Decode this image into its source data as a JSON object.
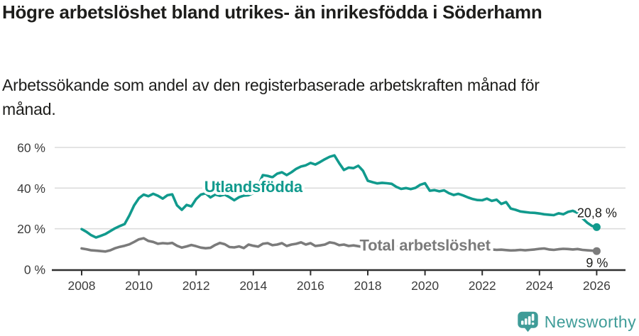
{
  "header": {
    "title": "Högre arbetslöshet bland utrikes- än inrikesfödda i Söderhamn",
    "subtitle": "Arbetssökande som andel av den registerbaserade arbetskraften månad för månad."
  },
  "footer": {
    "brand_name": "Newsworthy",
    "brand_icon": "speech-bubble-with-bar-chart-and-exclamation"
  },
  "colors": {
    "foreign_born_line": "#119a8d",
    "total_line": "#7b7b7b",
    "brand_teal": "#3f9c98",
    "text_dark": "#1d1d1b",
    "axis_text": "#3c3c3c",
    "gridline": "#dcdcdc",
    "axis_line": "#2f2f2f",
    "background": "#ffffff"
  },
  "chart_data": {
    "type": "line",
    "title": "Högre arbetslöshet bland utrikes- än inrikesfödda i Söderhamn",
    "subtitle": "Arbetssökande som andel av den registerbaserade arbetskraften månad för månad.",
    "unit": "%",
    "grid": "horizontal-only",
    "legend_position": "inline-series-labels",
    "xlim": [
      2008,
      2026
    ],
    "ylim": [
      0,
      62
    ],
    "x_axis": {
      "ticks": [
        {
          "value": 2008,
          "label": "2008"
        },
        {
          "value": 2010,
          "label": "2010"
        },
        {
          "value": 2012,
          "label": "2012"
        },
        {
          "value": 2014,
          "label": "2014"
        },
        {
          "value": 2016,
          "label": "2016"
        },
        {
          "value": 2018,
          "label": "2018"
        },
        {
          "value": 2020,
          "label": "2020"
        },
        {
          "value": 2022,
          "label": "2022"
        },
        {
          "value": 2024,
          "label": "2024"
        },
        {
          "value": 2026,
          "label": "2026"
        }
      ]
    },
    "y_axis": {
      "ticks": [
        {
          "value": 0,
          "label": "0 %"
        },
        {
          "value": 20,
          "label": "20 %"
        },
        {
          "value": 40,
          "label": "40 %"
        },
        {
          "value": 60,
          "label": "60 %"
        }
      ]
    },
    "series": [
      {
        "key": "utlandsfodda",
        "name": "Utlandsfödda",
        "color": "#119a8d",
        "x_start": 2008,
        "x_step_years": 0.1666667,
        "end_value": 20.8,
        "end_value_label": "20,8 %",
        "end_label_position": "above",
        "label_annotation": {
          "x": 2014.0,
          "y": 40.8
        },
        "values": [
          19.8,
          18.5,
          16.8,
          15.7,
          16.5,
          17.4,
          18.8,
          20.2,
          21.3,
          22.3,
          26.5,
          31.5,
          35.0,
          36.8,
          36.0,
          37.2,
          36.2,
          34.8,
          36.5,
          36.9,
          31.5,
          29.3,
          31.7,
          31.0,
          34.6,
          36.8,
          37.4,
          35.4,
          36.8,
          36.2,
          36.8,
          35.5,
          34.0,
          35.5,
          36.3,
          36.5,
          37.5,
          41.0,
          46.4,
          46.0,
          45.3,
          47.1,
          47.8,
          46.4,
          47.8,
          49.5,
          50.6,
          51.2,
          52.4,
          51.6,
          52.8,
          54.2,
          55.4,
          56.1,
          52.3,
          48.9,
          50.1,
          49.8,
          51.0,
          48.5,
          43.6,
          42.9,
          42.3,
          42.6,
          42.4,
          42.1,
          40.6,
          39.6,
          40.0,
          39.5,
          40.1,
          41.6,
          42.4,
          38.7,
          39.0,
          38.4,
          38.9,
          37.5,
          36.6,
          37.2,
          36.4,
          35.4,
          34.6,
          34.1,
          34.0,
          34.8,
          33.7,
          34.3,
          32.2,
          33.1,
          29.9,
          29.3,
          28.5,
          28.2,
          27.9,
          27.8,
          27.5,
          27.1,
          26.9,
          26.7,
          27.6,
          27.1,
          28.3,
          28.8,
          27.8,
          25.2,
          23.0,
          21.4,
          20.8
        ]
      },
      {
        "key": "total-arbetsloshet",
        "name": "Total arbetslöshet",
        "color": "#7b7b7b",
        "x_start": 2008,
        "x_step_years": 0.1666667,
        "end_value": 9,
        "end_value_label": "9 %",
        "end_label_position": "below",
        "label_annotation": {
          "x": 2020.0,
          "y": 12.1
        },
        "values": [
          10.3,
          9.9,
          9.4,
          9.2,
          9.0,
          8.8,
          9.4,
          10.4,
          11.1,
          11.6,
          12.3,
          13.5,
          14.8,
          15.3,
          14.0,
          13.5,
          12.6,
          12.9,
          12.7,
          13.0,
          11.6,
          10.7,
          11.3,
          12.0,
          11.4,
          10.7,
          10.4,
          10.6,
          12.0,
          13.0,
          12.4,
          11.0,
          10.8,
          11.3,
          10.5,
          12.2,
          11.6,
          11.2,
          12.6,
          12.9,
          11.9,
          12.2,
          12.9,
          11.5,
          12.2,
          12.6,
          13.3,
          12.2,
          12.9,
          11.5,
          11.8,
          12.2,
          13.3,
          12.9,
          11.9,
          12.2,
          11.5,
          11.8,
          11.4,
          11.0,
          11.2,
          11.0,
          11.3,
          11.6,
          11.2,
          10.8,
          11.0,
          11.4,
          11.1,
          10.8,
          11.2,
          11.6,
          11.8,
          12.6,
          12.4,
          12.0,
          12.2,
          11.8,
          11.6,
          12.0,
          11.4,
          11.0,
          10.8,
          10.4,
          10.2,
          10.0,
          9.8,
          9.6,
          9.7,
          9.5,
          9.3,
          9.4,
          9.6,
          9.4,
          9.6,
          9.8,
          10.1,
          10.3,
          9.8,
          9.6,
          9.9,
          10.1,
          10.0,
          9.8,
          10.0,
          9.6,
          9.4,
          9.2,
          9.0
        ]
      }
    ]
  }
}
